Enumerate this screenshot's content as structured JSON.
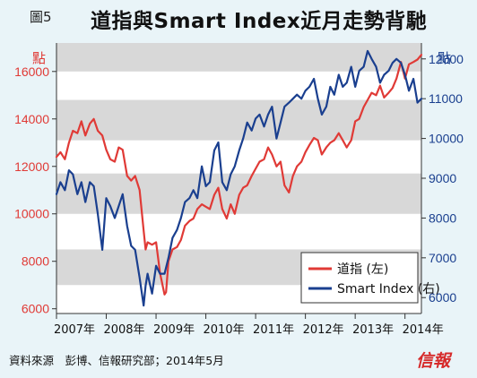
{
  "header": {
    "figure_label": "圖5",
    "title": "道指與Smart Index近月走勢背馳"
  },
  "footer": {
    "source": "資料來源　彭博、信報研究部；2014年5月",
    "logo_text": "信報"
  },
  "colors": {
    "background": "#e9f4f8",
    "plot_background": "#ffffff",
    "band": "#d8d8d8",
    "djia": "#e03a36",
    "smart": "#1a3f8f"
  },
  "chart_data": {
    "type": "line",
    "title": "道指與Smart Index近月走勢背馳",
    "x_axis": {
      "min": 2007.0,
      "max": 2014.33,
      "tick_labels": [
        "2007年",
        "2008年",
        "2009年",
        "2010年",
        "2011年",
        "2012年",
        "2013年",
        "2014年"
      ],
      "tick_positions": [
        2007,
        2008,
        2009,
        2010,
        2011,
        2012,
        2013,
        2014
      ]
    },
    "y_left": {
      "unit_label": "點",
      "min": 5800,
      "max": 17200,
      "ticks": [
        6000,
        8000,
        10000,
        12000,
        14000,
        16000
      ],
      "tick_labels": [
        "6000",
        "8000",
        "10000",
        "12000",
        "14000",
        "16000"
      ]
    },
    "y_right": {
      "unit_label": "點",
      "min": 5600,
      "max": 12400,
      "ticks": [
        6000,
        7000,
        8000,
        9000,
        10000,
        11000,
        12000
      ],
      "tick_labels": [
        "6000",
        "7000",
        "8000",
        "9000",
        "10000",
        "11000",
        "12000"
      ]
    },
    "gray_bands_left_axis": [
      [
        7000,
        8500
      ],
      [
        10000,
        11700
      ],
      [
        13100,
        14800
      ],
      [
        16000,
        17200
      ]
    ],
    "legend": {
      "position": "bottom-right"
    },
    "series": [
      {
        "name": "道指 (左)",
        "axis": "left",
        "color": "#e03a36",
        "x": [
          2007.0,
          2007.08,
          2007.17,
          2007.25,
          2007.33,
          2007.42,
          2007.5,
          2007.58,
          2007.67,
          2007.75,
          2007.83,
          2007.92,
          2008.0,
          2008.08,
          2008.17,
          2008.25,
          2008.33,
          2008.42,
          2008.5,
          2008.58,
          2008.67,
          2008.75,
          2008.79,
          2008.83,
          2008.92,
          2009.0,
          2009.08,
          2009.17,
          2009.2,
          2009.25,
          2009.33,
          2009.42,
          2009.5,
          2009.58,
          2009.67,
          2009.75,
          2009.83,
          2009.92,
          2010.0,
          2010.08,
          2010.17,
          2010.25,
          2010.33,
          2010.42,
          2010.5,
          2010.58,
          2010.67,
          2010.75,
          2010.83,
          2010.92,
          2011.0,
          2011.08,
          2011.17,
          2011.25,
          2011.33,
          2011.42,
          2011.5,
          2011.58,
          2011.67,
          2011.75,
          2011.83,
          2011.92,
          2012.0,
          2012.08,
          2012.17,
          2012.25,
          2012.33,
          2012.42,
          2012.5,
          2012.58,
          2012.67,
          2012.75,
          2012.83,
          2012.92,
          2013.0,
          2013.08,
          2013.17,
          2013.25,
          2013.33,
          2013.42,
          2013.5,
          2013.58,
          2013.67,
          2013.75,
          2013.83,
          2013.92,
          2014.0,
          2014.08,
          2014.17,
          2014.25,
          2014.33
        ],
        "y": [
          12400,
          12600,
          12300,
          13000,
          13500,
          13400,
          13900,
          13300,
          13800,
          14000,
          13500,
          13300,
          12700,
          12300,
          12200,
          12800,
          12700,
          11600,
          11400,
          11600,
          11000,
          9300,
          8500,
          8800,
          8700,
          8800,
          7500,
          6600,
          6700,
          8000,
          8500,
          8600,
          8900,
          9500,
          9700,
          9800,
          10200,
          10400,
          10300,
          10200,
          10800,
          11100,
          10200,
          9800,
          10400,
          10000,
          10800,
          11100,
          11200,
          11600,
          11900,
          12200,
          12300,
          12800,
          12500,
          12000,
          12200,
          11200,
          10900,
          11600,
          12000,
          12200,
          12600,
          12900,
          13200,
          13100,
          12500,
          12800,
          13000,
          13100,
          13400,
          13100,
          12800,
          13100,
          13900,
          14000,
          14500,
          14800,
          15100,
          15000,
          15400,
          14900,
          15100,
          15300,
          15700,
          16400,
          15700,
          16300,
          16400,
          16500,
          16700
        ]
      },
      {
        "name": "Smart Index (右)",
        "axis": "right",
        "color": "#1a3f8f",
        "x": [
          2007.0,
          2007.08,
          2007.17,
          2007.25,
          2007.33,
          2007.42,
          2007.5,
          2007.58,
          2007.67,
          2007.75,
          2007.83,
          2007.92,
          2008.0,
          2008.08,
          2008.17,
          2008.25,
          2008.33,
          2008.42,
          2008.5,
          2008.58,
          2008.67,
          2008.75,
          2008.79,
          2008.83,
          2008.92,
          2009.0,
          2009.08,
          2009.17,
          2009.25,
          2009.33,
          2009.42,
          2009.5,
          2009.58,
          2009.67,
          2009.75,
          2009.83,
          2009.92,
          2010.0,
          2010.08,
          2010.17,
          2010.25,
          2010.33,
          2010.42,
          2010.5,
          2010.58,
          2010.67,
          2010.75,
          2010.83,
          2010.92,
          2011.0,
          2011.08,
          2011.17,
          2011.25,
          2011.33,
          2011.42,
          2011.5,
          2011.58,
          2011.67,
          2011.75,
          2011.83,
          2011.92,
          2012.0,
          2012.08,
          2012.17,
          2012.25,
          2012.33,
          2012.42,
          2012.5,
          2012.58,
          2012.67,
          2012.75,
          2012.83,
          2012.92,
          2013.0,
          2013.08,
          2013.17,
          2013.25,
          2013.33,
          2013.42,
          2013.5,
          2013.58,
          2013.67,
          2013.75,
          2013.83,
          2013.92,
          2014.0,
          2014.08,
          2014.17,
          2014.25,
          2014.33
        ],
        "y": [
          8600,
          8900,
          8700,
          9200,
          9100,
          8600,
          8900,
          8400,
          8900,
          8800,
          8100,
          7200,
          8500,
          8300,
          8000,
          8300,
          8600,
          7800,
          7300,
          7200,
          6500,
          5800,
          6300,
          6600,
          6100,
          6800,
          6600,
          6600,
          7000,
          7500,
          7700,
          8000,
          8400,
          8500,
          8700,
          8500,
          9300,
          8800,
          8900,
          9700,
          9900,
          8900,
          8700,
          9100,
          9300,
          9700,
          10000,
          10400,
          10200,
          10500,
          10600,
          10300,
          10600,
          10800,
          10000,
          10400,
          10800,
          10900,
          11000,
          11100,
          11000,
          11200,
          11300,
          11500,
          11000,
          10600,
          10800,
          11300,
          11100,
          11600,
          11300,
          11400,
          11800,
          11300,
          11700,
          11800,
          12200,
          12000,
          11800,
          11400,
          11600,
          11700,
          11900,
          12000,
          11900,
          11600,
          11200,
          11500,
          10900,
          11000
        ]
      }
    ]
  }
}
